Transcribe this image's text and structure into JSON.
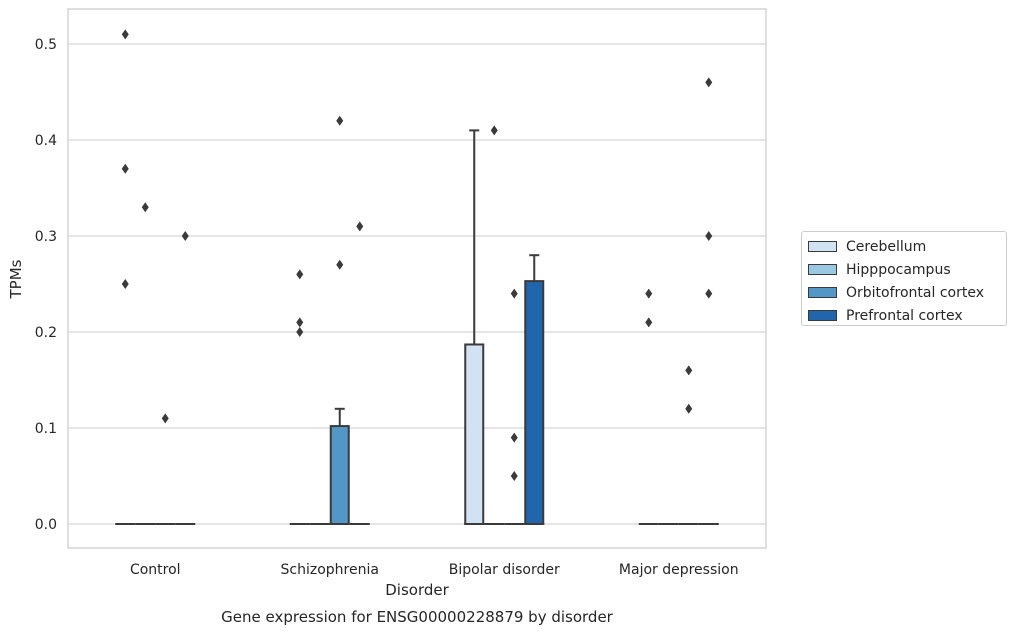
{
  "chart_data": {
    "type": "boxplot",
    "title": "Gene expression for ENSG00000228879 by disorder",
    "xlabel": "Disorder",
    "ylabel": "TPMs",
    "ylim": [
      -0.025,
      0.535
    ],
    "yticks": [
      "0.0",
      "0.1",
      "0.2",
      "0.3",
      "0.4",
      "0.5"
    ],
    "grid": true,
    "legend_position": "right",
    "categories": [
      "Control",
      "Schizophrenia",
      "Bipolar disorder",
      "Major depression"
    ],
    "series": [
      {
        "name": "Cerebellum",
        "color": "#d1e2f2",
        "boxes": [
          {
            "q1": 0,
            "median": 0,
            "q3": 0,
            "whisker_low": 0,
            "whisker_high": 0,
            "outliers": [
              0.25,
              0.37,
              0.51
            ]
          },
          {
            "q1": 0,
            "median": 0,
            "q3": 0,
            "whisker_low": 0,
            "whisker_high": 0,
            "outliers": [
              0.2,
              0.21,
              0.26
            ]
          },
          {
            "q1": 0,
            "median": 0,
            "q3": 0.187,
            "whisker_low": 0,
            "whisker_high": 0.41,
            "outliers": []
          },
          {
            "q1": 0,
            "median": 0,
            "q3": 0,
            "whisker_low": 0,
            "whisker_high": 0,
            "outliers": [
              0.21,
              0.24
            ]
          }
        ]
      },
      {
        "name": "Hipppocampus",
        "color": "#9ac8e0",
        "boxes": [
          {
            "q1": 0,
            "median": 0,
            "q3": 0,
            "whisker_low": 0,
            "whisker_high": 0,
            "outliers": [
              0.33
            ]
          },
          {
            "q1": 0,
            "median": 0,
            "q3": 0,
            "whisker_low": 0,
            "whisker_high": 0,
            "outliers": []
          },
          {
            "q1": 0,
            "median": 0,
            "q3": 0,
            "whisker_low": 0,
            "whisker_high": 0,
            "outliers": [
              0.41
            ]
          },
          {
            "q1": 0,
            "median": 0,
            "q3": 0,
            "whisker_low": 0,
            "whisker_high": 0,
            "outliers": []
          }
        ]
      },
      {
        "name": "Orbitofrontal cortex",
        "color": "#5297c6",
        "boxes": [
          {
            "q1": 0,
            "median": 0,
            "q3": 0,
            "whisker_low": 0,
            "whisker_high": 0,
            "outliers": [
              0.11
            ]
          },
          {
            "q1": 0,
            "median": 0,
            "q3": 0.102,
            "whisker_low": 0,
            "whisker_high": 0.12,
            "outliers": [
              0.27,
              0.42
            ]
          },
          {
            "q1": 0,
            "median": 0,
            "q3": 0,
            "whisker_low": 0,
            "whisker_high": 0,
            "outliers": [
              0.05,
              0.09,
              0.24
            ]
          },
          {
            "q1": 0,
            "median": 0,
            "q3": 0,
            "whisker_low": 0,
            "whisker_high": 0,
            "outliers": [
              0.12,
              0.16
            ]
          }
        ]
      },
      {
        "name": "Prefrontal cortex",
        "color": "#2166ac",
        "boxes": [
          {
            "q1": 0,
            "median": 0,
            "q3": 0,
            "whisker_low": 0,
            "whisker_high": 0,
            "outliers": [
              0.3
            ]
          },
          {
            "q1": 0,
            "median": 0,
            "q3": 0,
            "whisker_low": 0,
            "whisker_high": 0,
            "outliers": [
              0.31
            ]
          },
          {
            "q1": 0,
            "median": 0,
            "q3": 0.253,
            "whisker_low": 0,
            "whisker_high": 0.28,
            "outliers": []
          },
          {
            "q1": 0,
            "median": 0,
            "q3": 0,
            "whisker_low": 0,
            "whisker_high": 0,
            "outliers": [
              0.24,
              0.3,
              0.46
            ]
          }
        ]
      }
    ]
  }
}
